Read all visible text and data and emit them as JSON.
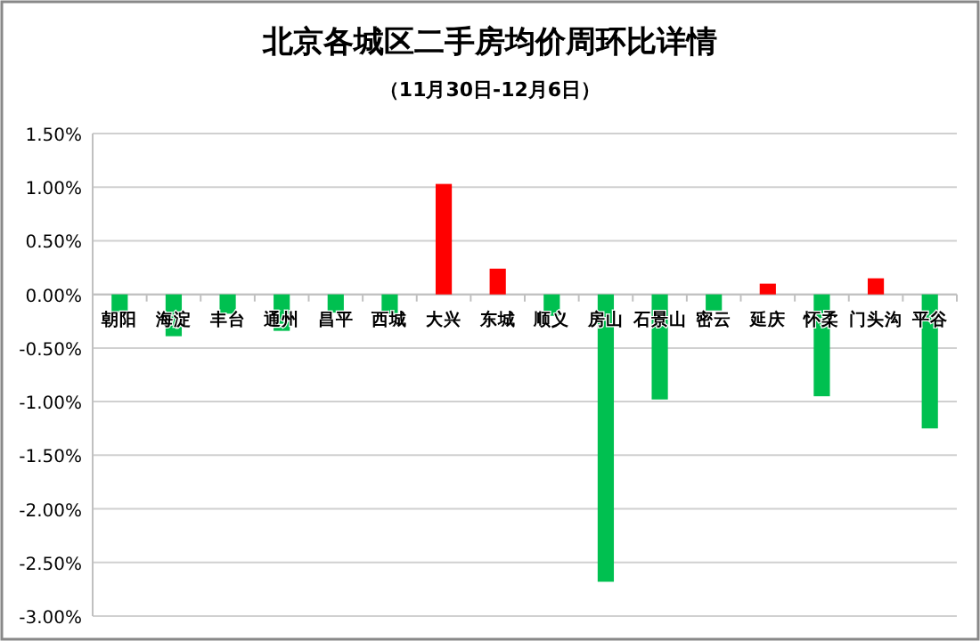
{
  "chart_data": {
    "type": "bar",
    "title": "北京各城区二手房均价周环比详情",
    "subtitle": "（11月30日-12月6日）",
    "categories": [
      "朝阳",
      "海淀",
      "丰台",
      "通州",
      "昌平",
      "西城",
      "大兴",
      "东城",
      "顺义",
      "房山",
      "石景山",
      "密云",
      "延庆",
      "怀柔",
      "门头沟",
      "平谷"
    ],
    "values": [
      -0.17,
      -0.39,
      -0.18,
      -0.34,
      -0.17,
      -0.18,
      1.03,
      0.24,
      -0.2,
      -2.68,
      -0.98,
      -0.15,
      0.1,
      -0.95,
      0.15,
      -1.25
    ],
    "colors": [
      "#00c050",
      "#00c050",
      "#00c050",
      "#00c050",
      "#00c050",
      "#00c050",
      "#ff0000",
      "#ff0000",
      "#00c050",
      "#00c050",
      "#00c050",
      "#00c050",
      "#ff0000",
      "#00c050",
      "#ff0000",
      "#00c050"
    ],
    "ylim": [
      -3,
      1.5
    ],
    "yticks": [
      {
        "value": -3,
        "label": "-3.00%"
      },
      {
        "value": -2.5,
        "label": "-2.50%"
      },
      {
        "value": -2,
        "label": "-2.00%"
      },
      {
        "value": -1.5,
        "label": "-1.50%"
      },
      {
        "value": -1,
        "label": "-1.00%"
      },
      {
        "value": -0.5,
        "label": "-0.50%"
      },
      {
        "value": 0,
        "label": "0.00%"
      },
      {
        "value": 0.5,
        "label": "0.50%"
      },
      {
        "value": 1,
        "label": "1.00%"
      },
      {
        "value": 1.5,
        "label": "1.50%"
      }
    ],
    "grid": "y"
  }
}
